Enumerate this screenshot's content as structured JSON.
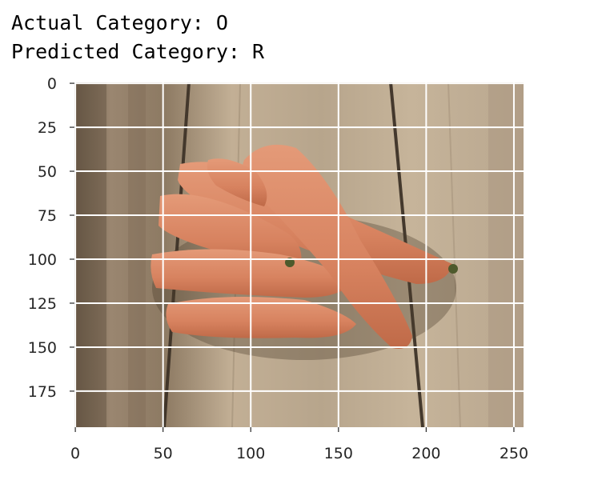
{
  "output": {
    "actual_label": "Actual Category: O",
    "predicted_label": "Predicted Category: R"
  },
  "image_plot": {
    "subject": "carrots-on-wooden-table-photo",
    "x_ticks": [
      0,
      50,
      100,
      150,
      200,
      250
    ],
    "y_ticks": [
      0,
      25,
      50,
      75,
      100,
      125,
      150,
      175
    ],
    "x_range": [
      -0.5,
      255.5
    ],
    "y_range": [
      -0.5,
      195.5
    ],
    "grid": true,
    "colors": {
      "wood_light": "#b9a68c",
      "wood_dark": "#6e5d4a",
      "carrot": "#d98563",
      "carrot_shadow": "#b9603f",
      "grid": "#ffffff",
      "tick": "#262626"
    }
  }
}
